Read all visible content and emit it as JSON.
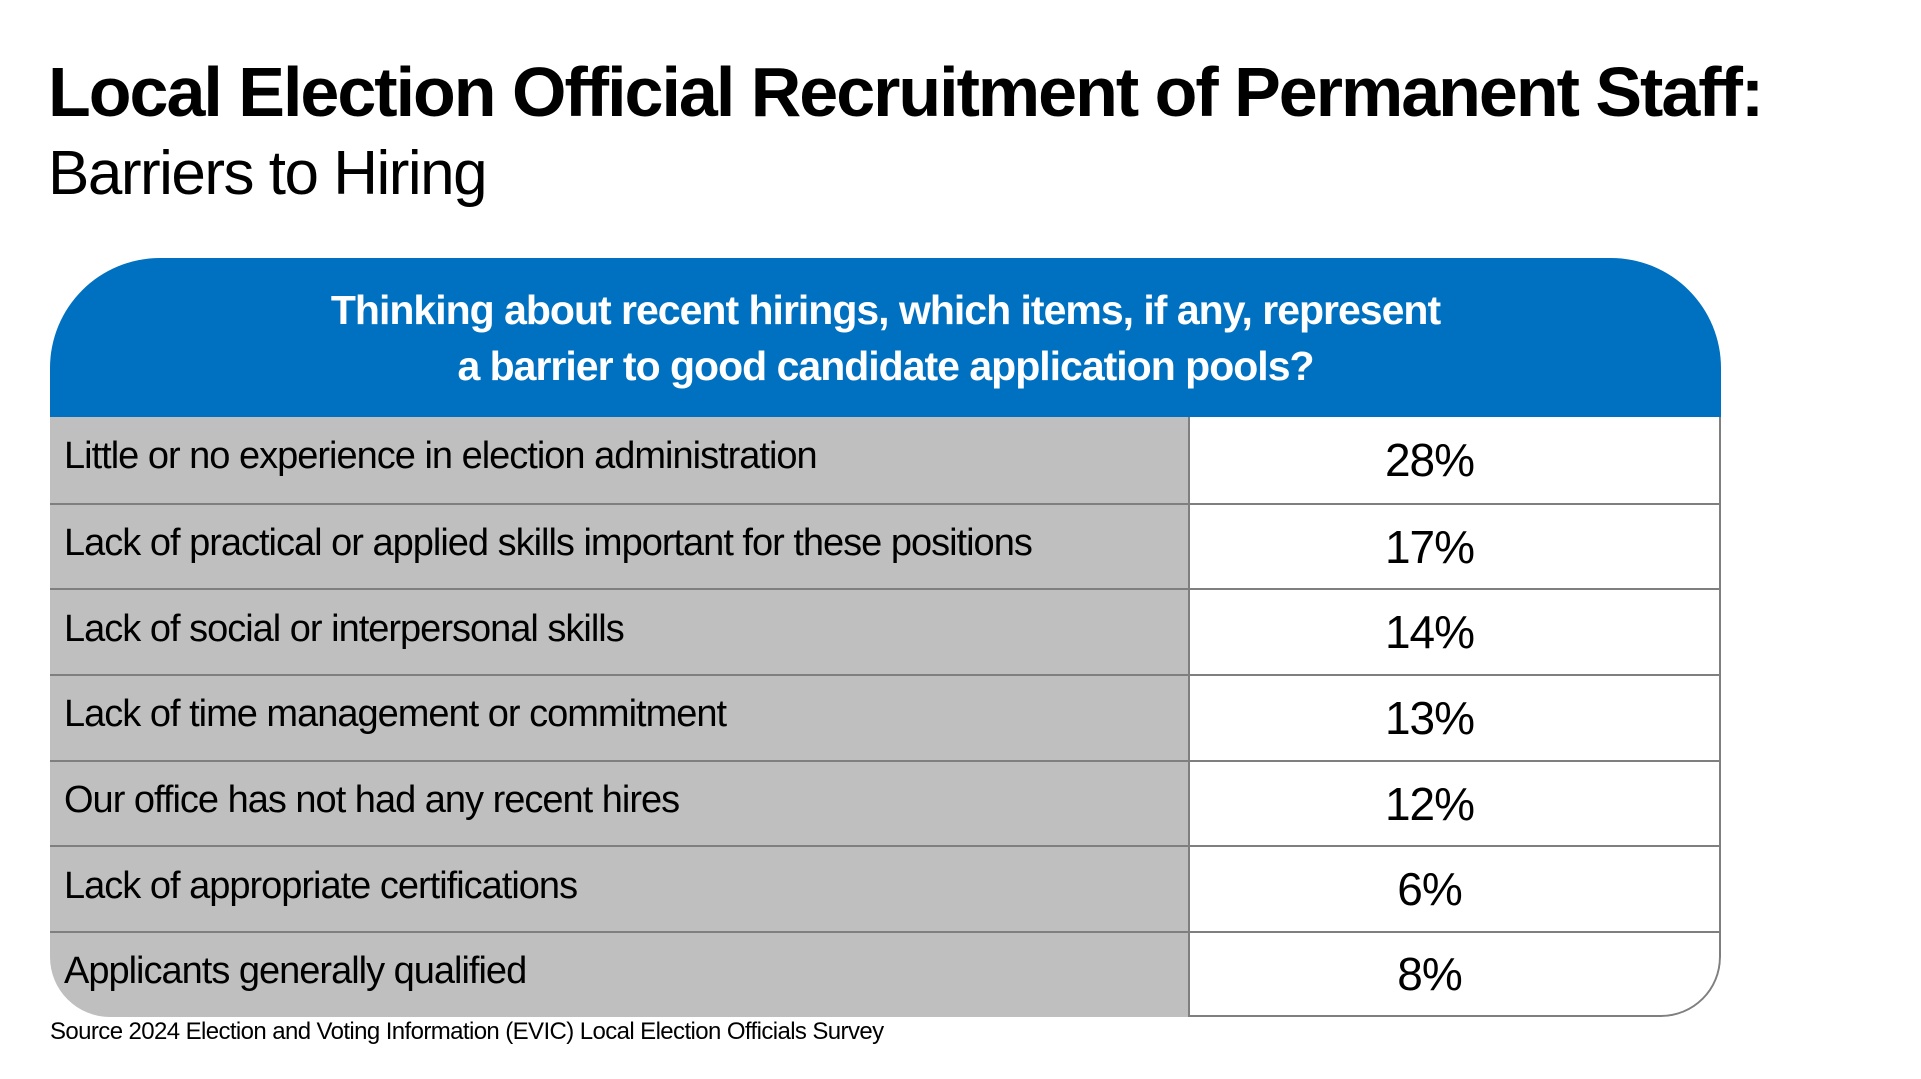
{
  "title": "Local Election Official Recruitment of Permanent Staff:",
  "subtitle": "Barriers to Hiring",
  "colors": {
    "header": "#0070c0",
    "label_bg": "#bfbfbf"
  },
  "chart_data": {
    "type": "table",
    "title": "Local Election Official Recruitment of Permanent Staff:",
    "subtitle": "Barriers to Hiring",
    "question_lines": [
      "Thinking about recent hirings, which items, if any, represent",
      "a barrier to good candidate application pools?"
    ],
    "rows": [
      {
        "label": "Little or no experience in election administration",
        "value": "28%"
      },
      {
        "label": "Lack of practical or applied skills important for these positions",
        "value": "17%"
      },
      {
        "label": "Lack of social or interpersonal skills",
        "value": "14%"
      },
      {
        "label": "Lack of time management or commitment",
        "value": "13%"
      },
      {
        "label": "Our office has not had any recent hires",
        "value": "12%"
      },
      {
        "label": "Lack of appropriate certifications",
        "value": "6%"
      },
      {
        "label": "Applicants generally qualified",
        "value": "8%"
      }
    ],
    "source": "Source 2024 Election and Voting Information (EVIC) Local Election Officials Survey"
  }
}
